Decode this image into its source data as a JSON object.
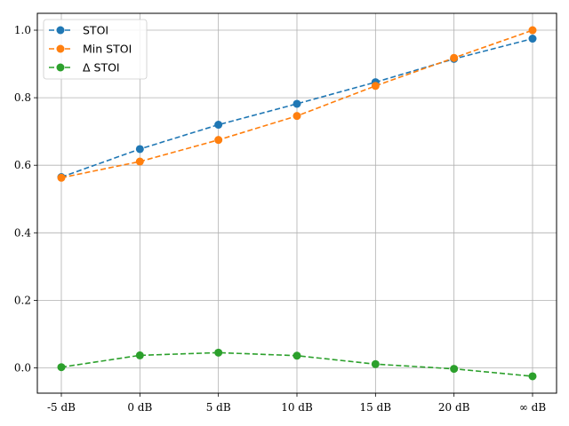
{
  "chart_data": {
    "type": "line",
    "title": "",
    "xlabel": "",
    "ylabel": "",
    "categories": [
      "-5 dB",
      "0 dB",
      "5 dB",
      "10 dB",
      "15 dB",
      "20 dB",
      "∞ dB"
    ],
    "ylim": [
      -0.075,
      1.05
    ],
    "yticks": [
      "0.0",
      "0.2",
      "0.4",
      "0.6",
      "0.8",
      "1.0"
    ],
    "grid": true,
    "legend_position": "top-left",
    "line_style": "dashed",
    "series": [
      {
        "name": "STOI",
        "color": "#1f77b4",
        "values": [
          0.565,
          0.648,
          0.72,
          0.782,
          0.846,
          0.915,
          0.975
        ]
      },
      {
        "name": "Min STOI",
        "color": "#ff7f0e",
        "values": [
          0.563,
          0.611,
          0.675,
          0.746,
          0.835,
          0.918,
          1.0
        ]
      },
      {
        "name": "Δ STOI",
        "color": "#2ca02c",
        "values": [
          0.002,
          0.037,
          0.045,
          0.036,
          0.011,
          -0.003,
          -0.025
        ]
      }
    ]
  }
}
